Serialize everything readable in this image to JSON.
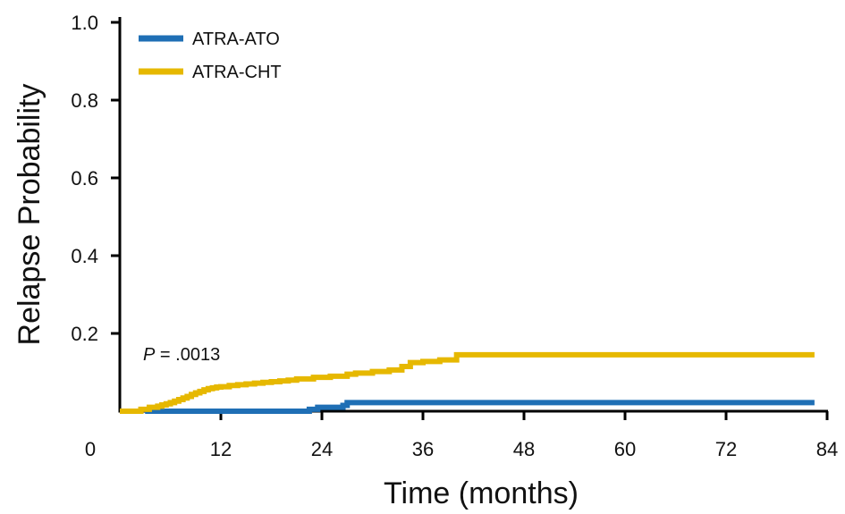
{
  "chart_data": {
    "type": "line",
    "xlabel": "Time (months)",
    "ylabel": "Relapse Probability",
    "xlim": [
      0,
      84
    ],
    "ylim": [
      0,
      1.0
    ],
    "x_ticks": [
      0,
      12,
      24,
      36,
      48,
      60,
      72,
      84
    ],
    "y_ticks": [
      0.2,
      0.4,
      0.6,
      0.8,
      1.0
    ],
    "x_tick_labels": [
      "0",
      "12",
      "24",
      "36",
      "48",
      "60",
      "72",
      "84"
    ],
    "y_tick_labels": [
      "0.2",
      "0.4",
      "0.6",
      "0.8",
      "1.0"
    ],
    "legend_position": "top-left",
    "annotation": {
      "prefix": "P",
      "text": " = .0013"
    },
    "series": [
      {
        "name": "ATRA-ATO",
        "color": "#1f6fb5",
        "x": [
          3,
          22.5,
          23.5,
          26.5,
          27,
          82.5
        ],
        "y": [
          0,
          0.005,
          0.01,
          0.015,
          0.022,
          0.022
        ]
      },
      {
        "name": "ATRA-CHT",
        "color": "#e6b800",
        "x": [
          0,
          2,
          2.5,
          3.5,
          4.5,
          5,
          5.5,
          6,
          6.5,
          7,
          7.5,
          8,
          8.5,
          9,
          9.5,
          10,
          10.5,
          11,
          11.5,
          12,
          13,
          14,
          15,
          16,
          17,
          18,
          19,
          20,
          21,
          23,
          25,
          27,
          28,
          30,
          32,
          33.5,
          34.5,
          36,
          38,
          40,
          82.5
        ],
        "y": [
          0,
          0,
          0.005,
          0.01,
          0.013,
          0.016,
          0.019,
          0.022,
          0.026,
          0.03,
          0.034,
          0.038,
          0.043,
          0.047,
          0.051,
          0.055,
          0.058,
          0.06,
          0.062,
          0.063,
          0.066,
          0.068,
          0.07,
          0.072,
          0.074,
          0.076,
          0.078,
          0.08,
          0.083,
          0.087,
          0.09,
          0.095,
          0.098,
          0.102,
          0.106,
          0.115,
          0.125,
          0.128,
          0.132,
          0.145,
          0.145
        ]
      }
    ]
  }
}
